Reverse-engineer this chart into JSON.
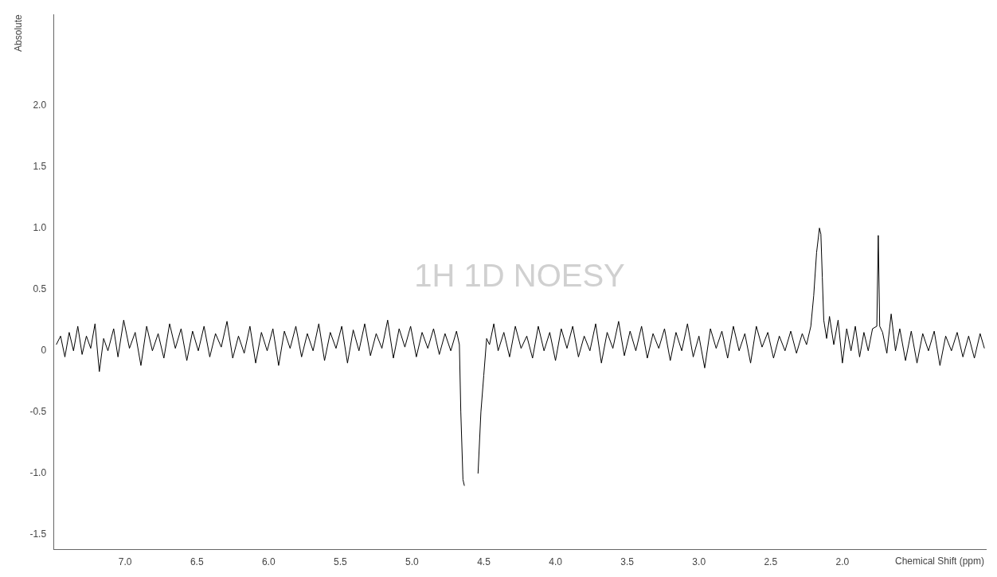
{
  "chart_data": {
    "type": "line",
    "title": "1H 1D NOESY",
    "xlabel": "Chemical Shift (ppm)",
    "ylabel": "Absolute",
    "xlim": [
      7.5,
      1.0
    ],
    "ylim": [
      -1.62,
      2.74
    ],
    "xticks": [
      {
        "value": 7,
        "label": "7.0"
      },
      6.5,
      {
        "value": 6,
        "label": "6.0"
      },
      5.5,
      {
        "value": 5,
        "label": "5.0"
      },
      4.5,
      {
        "value": 4,
        "label": "4.0"
      },
      3.5,
      {
        "value": 3,
        "label": "3.0"
      },
      2.5,
      {
        "value": 2,
        "label": "2.0"
      }
    ],
    "yticks": [
      {
        "value": 2,
        "label": "2.0"
      },
      1.5,
      {
        "value": 1,
        "label": "1.0"
      },
      0.5,
      0,
      -0.5,
      {
        "value": -1,
        "label": "-1.0"
      },
      -1.5
    ],
    "grid": false,
    "legend": false,
    "marker": "none",
    "line_style": "solid",
    "series": [
      {
        "color": "#000000",
        "x": [
          7.48,
          7.45,
          7.42,
          7.39,
          7.36,
          7.33,
          7.3,
          7.27,
          7.24,
          7.21,
          7.18,
          7.15,
          7.12,
          7.08,
          7.05,
          7.01,
          6.97,
          6.93,
          6.89,
          6.85,
          6.81,
          6.77,
          6.73,
          6.69,
          6.65,
          6.61,
          6.57,
          6.53,
          6.49,
          6.45,
          6.41,
          6.37,
          6.33,
          6.29,
          6.25,
          6.21,
          6.17,
          6.13,
          6.09,
          6.05,
          6.01,
          5.97,
          5.93,
          5.89,
          5.85,
          5.81,
          5.77,
          5.73,
          5.69,
          5.65,
          5.61,
          5.57,
          5.53,
          5.49,
          5.45,
          5.41,
          5.37,
          5.33,
          5.29,
          5.25,
          5.21,
          5.17,
          5.13,
          5.09,
          5.05,
          5.01,
          4.97,
          4.93,
          4.89,
          4.85,
          4.81,
          4.77,
          4.73,
          4.69,
          4.67,
          4.66,
          4.645,
          4.635,
          4.63,
          4.59,
          4.545,
          4.54,
          4.52,
          4.5,
          4.48,
          4.46,
          4.43,
          4.4,
          4.36,
          4.32,
          4.28,
          4.24,
          4.2,
          4.16,
          4.12,
          4.08,
          4.04,
          4.0,
          3.96,
          3.92,
          3.88,
          3.84,
          3.8,
          3.76,
          3.72,
          3.68,
          3.64,
          3.6,
          3.56,
          3.52,
          3.48,
          3.44,
          3.4,
          3.36,
          3.32,
          3.28,
          3.24,
          3.2,
          3.16,
          3.12,
          3.08,
          3.04,
          3.0,
          2.96,
          2.92,
          2.88,
          2.84,
          2.8,
          2.76,
          2.72,
          2.68,
          2.64,
          2.6,
          2.56,
          2.52,
          2.48,
          2.44,
          2.4,
          2.36,
          2.32,
          2.28,
          2.25,
          2.22,
          2.2,
          2.18,
          2.16,
          2.15,
          2.14,
          2.13,
          2.11,
          2.09,
          2.06,
          2.03,
          2.0,
          1.97,
          1.94,
          1.91,
          1.88,
          1.85,
          1.82,
          1.79,
          1.76,
          1.75,
          1.74,
          1.72,
          1.69,
          1.66,
          1.63,
          1.6,
          1.56,
          1.52,
          1.48,
          1.44,
          1.4,
          1.36,
          1.32,
          1.28,
          1.24,
          1.2,
          1.16,
          1.12,
          1.08,
          1.04,
          1.01
        ],
        "values": [
          0.05,
          0.12,
          -0.05,
          0.15,
          0.0,
          0.2,
          -0.03,
          0.12,
          0.02,
          0.22,
          -0.17,
          0.1,
          0.0,
          0.18,
          -0.05,
          0.25,
          0.02,
          0.15,
          -0.12,
          0.2,
          0.0,
          0.14,
          -0.06,
          0.22,
          0.02,
          0.18,
          -0.08,
          0.16,
          0.0,
          0.2,
          -0.05,
          0.14,
          0.03,
          0.24,
          -0.06,
          0.12,
          -0.02,
          0.2,
          -0.1,
          0.15,
          0.0,
          0.18,
          -0.12,
          0.16,
          0.02,
          0.2,
          -0.05,
          0.14,
          0.0,
          0.22,
          -0.08,
          0.15,
          0.02,
          0.2,
          -0.1,
          0.17,
          0.0,
          0.22,
          -0.04,
          0.14,
          0.02,
          0.25,
          -0.06,
          0.18,
          0.03,
          0.2,
          -0.05,
          0.15,
          0.02,
          0.18,
          -0.03,
          0.14,
          0.0,
          0.16,
          0.05,
          -0.5,
          -1.05,
          -1.1,
          null,
          null,
          null,
          -1.0,
          -0.5,
          -0.2,
          0.1,
          0.05,
          0.22,
          0.0,
          0.15,
          -0.05,
          0.2,
          0.02,
          0.12,
          -0.06,
          0.2,
          0.0,
          0.15,
          -0.08,
          0.18,
          0.02,
          0.2,
          -0.05,
          0.12,
          0.0,
          0.22,
          -0.1,
          0.15,
          0.02,
          0.24,
          -0.04,
          0.16,
          0.0,
          0.2,
          -0.06,
          0.14,
          0.02,
          0.18,
          -0.08,
          0.15,
          0.0,
          0.22,
          -0.05,
          0.12,
          -0.14,
          0.18,
          0.02,
          0.16,
          -0.06,
          0.2,
          0.0,
          0.14,
          -0.1,
          0.2,
          0.03,
          0.15,
          -0.06,
          0.12,
          0.0,
          0.16,
          -0.02,
          0.14,
          0.05,
          0.2,
          0.45,
          0.8,
          1.0,
          0.95,
          0.6,
          0.25,
          0.1,
          0.28,
          0.05,
          0.25,
          -0.1,
          0.18,
          0.0,
          0.2,
          -0.05,
          0.15,
          0.0,
          0.18,
          0.2,
          0.94,
          0.2,
          0.15,
          -0.02,
          0.3,
          0.0,
          0.18,
          -0.08,
          0.16,
          -0.1,
          0.14,
          0.0,
          0.16,
          -0.12,
          0.12,
          0.0,
          0.15,
          -0.05,
          0.12,
          -0.06,
          0.14,
          0.02
        ]
      }
    ]
  }
}
